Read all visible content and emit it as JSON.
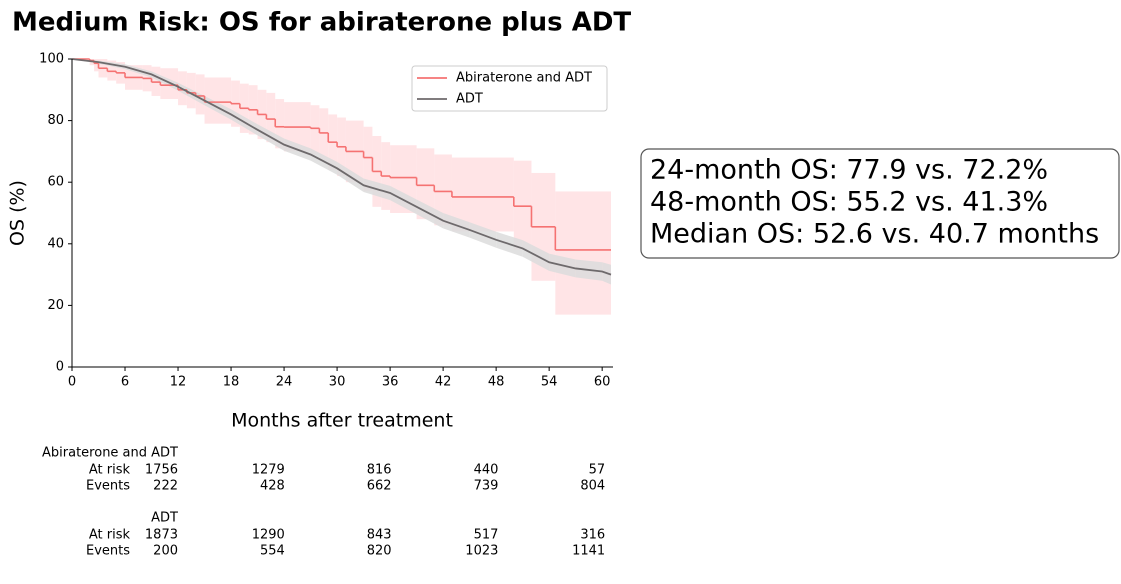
{
  "chart_data": {
    "type": "survival",
    "title": "Medium Risk: OS for abiraterone plus ADT",
    "xlabel": "Months after treatment",
    "ylabel": "OS (%)",
    "xlim": [
      0,
      61
    ],
    "ylim": [
      0,
      100
    ],
    "xticks": [
      0,
      6,
      12,
      18,
      24,
      30,
      36,
      42,
      48,
      54,
      60
    ],
    "yticks": [
      0,
      20,
      40,
      60,
      80,
      100
    ],
    "legend": "upper right",
    "series": [
      {
        "name": "Abiraterone and ADT",
        "color": "#f57272",
        "band_color": "#ffdfe2",
        "step": true,
        "x": [
          0,
          2,
          2.5,
          3,
          4,
          5,
          6,
          8,
          9,
          10,
          12,
          13,
          14,
          15,
          18,
          19,
          20,
          21,
          22,
          23,
          24,
          27,
          28,
          29,
          30,
          31,
          33,
          34,
          35,
          36,
          39,
          41,
          43,
          50,
          52,
          54.7
        ],
        "values": [
          100,
          99.5,
          98.6,
          97,
          96,
          95.5,
          94,
          93.7,
          92.5,
          91.5,
          90,
          89,
          88,
          86,
          85.5,
          84,
          83.5,
          82,
          80.5,
          78,
          77.9,
          77.5,
          76,
          73,
          71.5,
          70,
          68,
          63.5,
          62,
          61.5,
          59,
          57,
          55.2,
          52.2,
          45.5,
          38
        ],
        "upper": [
          100,
          100,
          100,
          100,
          99.5,
          99,
          98,
          98,
          97.5,
          97,
          96,
          95.5,
          95,
          94,
          93,
          92,
          91.5,
          90,
          89,
          87,
          86,
          85,
          84,
          82,
          81,
          80,
          78,
          75,
          73,
          72,
          71,
          69,
          68,
          67,
          63,
          57
        ],
        "lower": [
          100,
          98,
          96,
          94,
          93,
          92,
          90,
          89.5,
          88,
          87,
          85,
          84,
          82,
          79,
          78,
          76,
          75.5,
          74,
          73,
          71,
          70,
          69,
          67,
          64,
          62,
          60,
          57,
          52,
          51,
          50,
          48,
          46,
          44,
          38,
          28,
          17
        ]
      },
      {
        "name": "ADT",
        "color": "#6e6a6c",
        "band_color": "#dcdcdc",
        "step": false,
        "x": [
          0,
          3,
          6,
          9,
          12,
          15,
          18,
          21,
          24,
          27,
          30,
          33,
          36,
          39,
          42,
          45,
          48,
          51,
          54,
          57,
          60,
          61
        ],
        "values": [
          100,
          99,
          97.5,
          95,
          91,
          86.5,
          82,
          77,
          72.2,
          69,
          64.5,
          59,
          56.5,
          52,
          47.5,
          44.5,
          41.3,
          38.5,
          34,
          32,
          31,
          30
        ],
        "upper": [
          100,
          99.5,
          98.3,
          96,
          92.3,
          88,
          83.7,
          78.8,
          74.2,
          71,
          66.6,
          61.2,
          58.8,
          54.4,
          50,
          47,
          43.9,
          41.2,
          36.8,
          34.9,
          34,
          33.2
        ],
        "lower": [
          100,
          98.5,
          96.7,
          94,
          89.7,
          85,
          80.3,
          75.2,
          70.2,
          67,
          62.4,
          56.8,
          54.2,
          49.6,
          45,
          42,
          38.7,
          35.8,
          31.2,
          29.1,
          28,
          26.8
        ]
      }
    ],
    "annotation": [
      "24-month OS: 77.9 vs. 72.2%",
      "48-month OS: 55.2 vs. 41.3%",
      "Median OS: 52.6 vs. 40.7 months"
    ],
    "risk_table": [
      {
        "name": "Abiraterone and ADT",
        "rows": [
          {
            "label": "At risk",
            "values": [
              1756,
              1279,
              816,
              440,
              57
            ]
          },
          {
            "label": "Events",
            "values": [
              222,
              428,
              662,
              739,
              804
            ]
          }
        ]
      },
      {
        "name": "ADT",
        "rows": [
          {
            "label": "At risk",
            "values": [
              1873,
              1290,
              843,
              517,
              316
            ]
          },
          {
            "label": "Events",
            "values": [
              200,
              554,
              820,
              1023,
              1141
            ]
          }
        ]
      }
    ]
  }
}
